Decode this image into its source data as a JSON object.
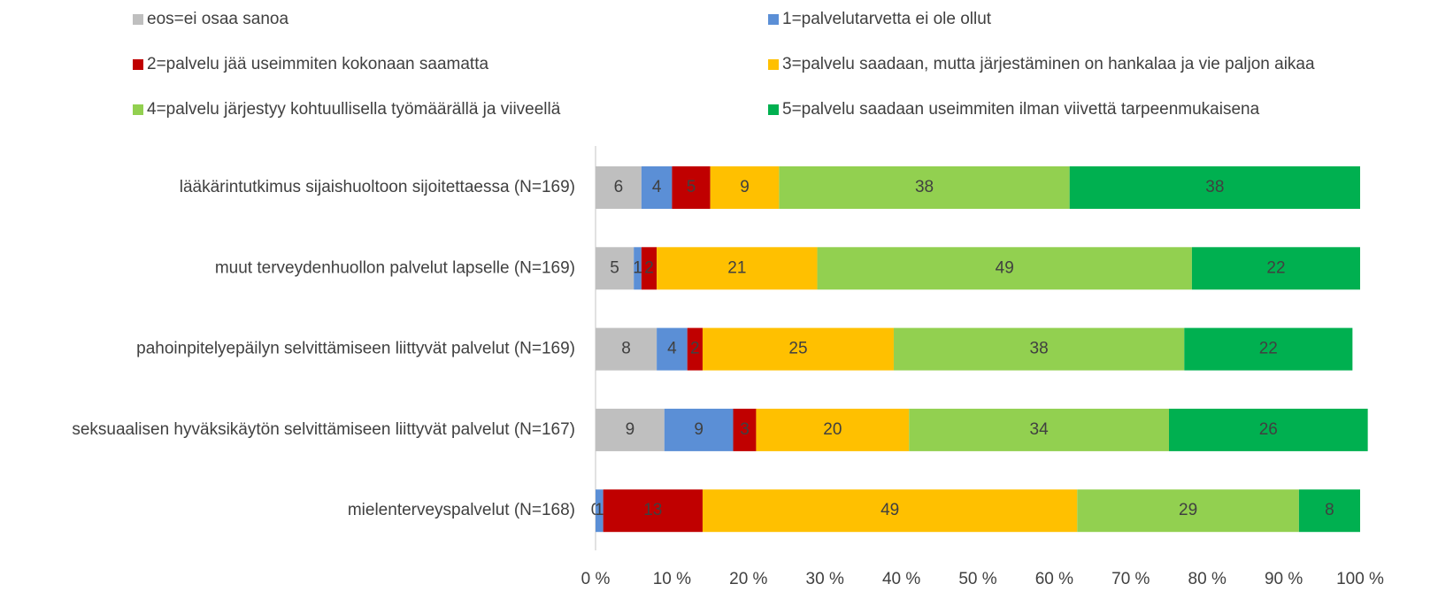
{
  "chart_data": {
    "type": "stacked-bar-horizontal",
    "categories": [
      "lääkärintutkimus sijaishuoltoon sijoitettaessa (N=169)",
      "muut terveydenhuollon palvelut lapselle (N=169)",
      "pahoinpitelyepäilyn selvittämiseen liittyvät palvelut (N=169)",
      "seksuaalisen hyväksikäytön selvittämiseen liittyvät palvelut (N=167)",
      "mielenterveyspalvelut (N=168)"
    ],
    "series": [
      {
        "name": "eos=ei osaa sanoa",
        "color": "#bfbfbf",
        "values": [
          6,
          5,
          8,
          9,
          0
        ]
      },
      {
        "name": "1=palvelutarvetta ei ole ollut",
        "color": "#5b8fd6",
        "values": [
          4,
          1,
          4,
          9,
          1
        ]
      },
      {
        "name": "2=palvelu jää useimmiten kokonaan saamatta",
        "color": "#c00000",
        "values": [
          5,
          2,
          2,
          3,
          13
        ]
      },
      {
        "name": "3=palvelu saadaan, mutta järjestäminen on hankalaa ja vie paljon aikaa",
        "color": "#ffc000",
        "values": [
          9,
          21,
          25,
          20,
          49
        ]
      },
      {
        "name": "4=palvelu järjestyy kohtuullisella työmäärällä ja viiveellä",
        "color": "#92d050",
        "values": [
          38,
          49,
          38,
          34,
          29
        ]
      },
      {
        "name": "5=palvelu saadaan useimmiten ilman viivettä tarpeenmukaisena",
        "color": "#00b050",
        "values": [
          38,
          22,
          22,
          26,
          8
        ]
      }
    ],
    "xlim": [
      0,
      100
    ],
    "xticks": [
      {
        "value": 0,
        "label": "0 %"
      },
      {
        "value": 10,
        "label": "10 %"
      },
      {
        "value": 20,
        "label": "20 %"
      },
      {
        "value": 30,
        "label": "30 %"
      },
      {
        "value": 40,
        "label": "40 %"
      },
      {
        "value": 50,
        "label": "50 %"
      },
      {
        "value": 60,
        "label": "60 %"
      },
      {
        "value": 70,
        "label": "70 %"
      },
      {
        "value": 80,
        "label": "80 %"
      },
      {
        "value": 90,
        "label": "90 %"
      },
      {
        "value": 100,
        "label": "100 %"
      }
    ]
  }
}
